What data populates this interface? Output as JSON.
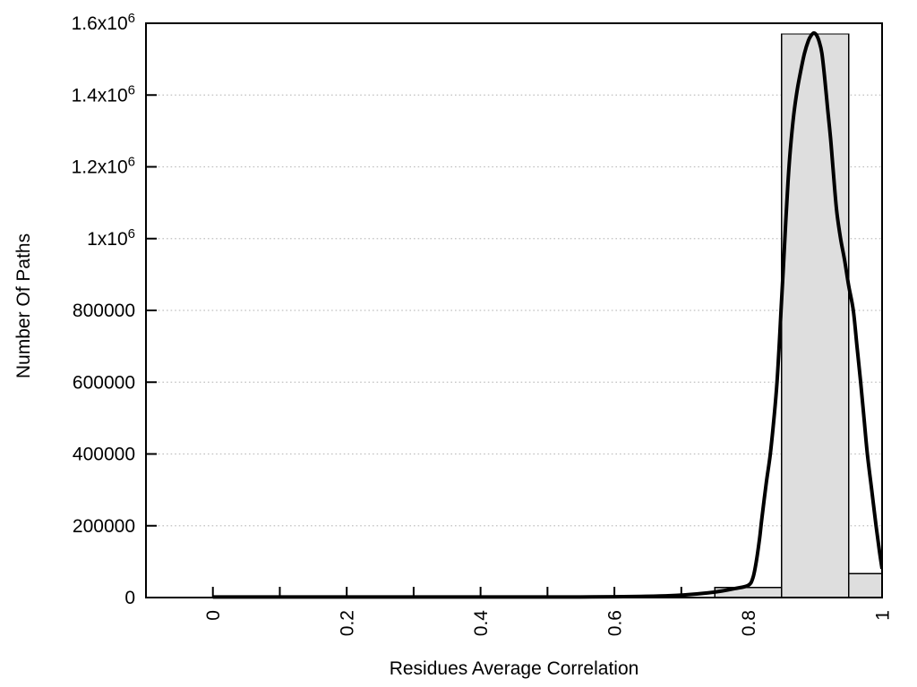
{
  "chart_data": {
    "type": "bar",
    "subtype": "histogram-with-fit-curve",
    "title": "",
    "xlabel": "Residues Average Correlation",
    "ylabel": "Number Of Paths",
    "xlim": [
      -0.1,
      1.0
    ],
    "ylim": [
      0,
      1600000
    ],
    "grid": "horizontal-dotted",
    "legend": "none",
    "x_tick_positions": [
      0,
      0.1,
      0.2,
      0.3,
      0.4,
      0.5,
      0.6,
      0.7,
      0.8,
      0.9,
      1.0
    ],
    "x_major_ticks": [
      {
        "value": 0,
        "label": "0"
      },
      {
        "value": 0.2,
        "label": "0.2"
      },
      {
        "value": 0.4,
        "label": "0.4"
      },
      {
        "value": 0.6,
        "label": "0.6"
      },
      {
        "value": 0.8,
        "label": "0.8"
      },
      {
        "value": 1,
        "label": "1"
      }
    ],
    "y_ticks": [
      {
        "value": 0,
        "label": "0"
      },
      {
        "value": 200000,
        "label": "200000"
      },
      {
        "value": 400000,
        "label": "400000"
      },
      {
        "value": 600000,
        "label": "600000"
      },
      {
        "value": 800000,
        "label": "800000"
      },
      {
        "value": 1000000,
        "label": "1x10^6"
      },
      {
        "value": 1200000,
        "label": "1.2x10^6"
      },
      {
        "value": 1400000,
        "label": "1.4x10^6"
      },
      {
        "value": 1600000,
        "label": "1.6x10^6"
      }
    ],
    "bars": [
      {
        "from": 0.75,
        "to": 0.85,
        "count": 28000
      },
      {
        "from": 0.85,
        "to": 0.95,
        "count": 1570000
      },
      {
        "from": 0.95,
        "to": 1.0,
        "count": 67000
      }
    ],
    "curve": {
      "name": "gaussian-fit",
      "peak_x": 0.898,
      "peak_value": 1573000,
      "points": [
        [
          0.0,
          1500
        ],
        [
          0.05,
          1500
        ],
        [
          0.1,
          1500
        ],
        [
          0.15,
          1500
        ],
        [
          0.2,
          1500
        ],
        [
          0.25,
          1500
        ],
        [
          0.3,
          1500
        ],
        [
          0.35,
          1500
        ],
        [
          0.4,
          1500
        ],
        [
          0.45,
          1500
        ],
        [
          0.5,
          1500
        ],
        [
          0.55,
          1700
        ],
        [
          0.6,
          2300
        ],
        [
          0.64,
          3200
        ],
        [
          0.68,
          5000
        ],
        [
          0.71,
          8000
        ],
        [
          0.74,
          13000
        ],
        [
          0.76,
          18000
        ],
        [
          0.78,
          25000
        ],
        [
          0.8,
          34000
        ],
        [
          0.807,
          55000
        ],
        [
          0.812,
          100000
        ],
        [
          0.817,
          165000
        ],
        [
          0.82,
          215000
        ],
        [
          0.827,
          320000
        ],
        [
          0.833,
          400000
        ],
        [
          0.839,
          510000
        ],
        [
          0.843,
          600000
        ],
        [
          0.8465,
          710000
        ],
        [
          0.849,
          800000
        ],
        [
          0.8525,
          920000
        ],
        [
          0.856,
          1045000
        ],
        [
          0.8595,
          1160000
        ],
        [
          0.863,
          1250000
        ],
        [
          0.868,
          1345000
        ],
        [
          0.873,
          1412000
        ],
        [
          0.878,
          1463000
        ],
        [
          0.884,
          1516000
        ],
        [
          0.89,
          1552000
        ],
        [
          0.894,
          1566000
        ],
        [
          0.898,
          1573000
        ],
        [
          0.902,
          1567000
        ],
        [
          0.906,
          1549000
        ],
        [
          0.91,
          1517000
        ],
        [
          0.914,
          1452000
        ],
        [
          0.919,
          1355000
        ],
        [
          0.923,
          1280000
        ],
        [
          0.9265,
          1200000
        ],
        [
          0.932,
          1080000
        ],
        [
          0.938,
          1000000
        ],
        [
          0.944,
          940000
        ],
        [
          0.95,
          870000
        ],
        [
          0.957,
          800000
        ],
        [
          0.9625,
          700000
        ],
        [
          0.968,
          600000
        ],
        [
          0.973,
          500000
        ],
        [
          0.978,
          400000
        ],
        [
          0.9845,
          300000
        ],
        [
          0.991,
          200000
        ],
        [
          0.996,
          130000
        ],
        [
          1.0,
          80000
        ]
      ]
    },
    "colors": {
      "background": "#ffffff",
      "bar_fill": "#dedede",
      "bar_stroke": "#000000",
      "curve": "#000000",
      "grid": "#c0c0c0",
      "axis": "#000000",
      "text": "#000000"
    }
  }
}
